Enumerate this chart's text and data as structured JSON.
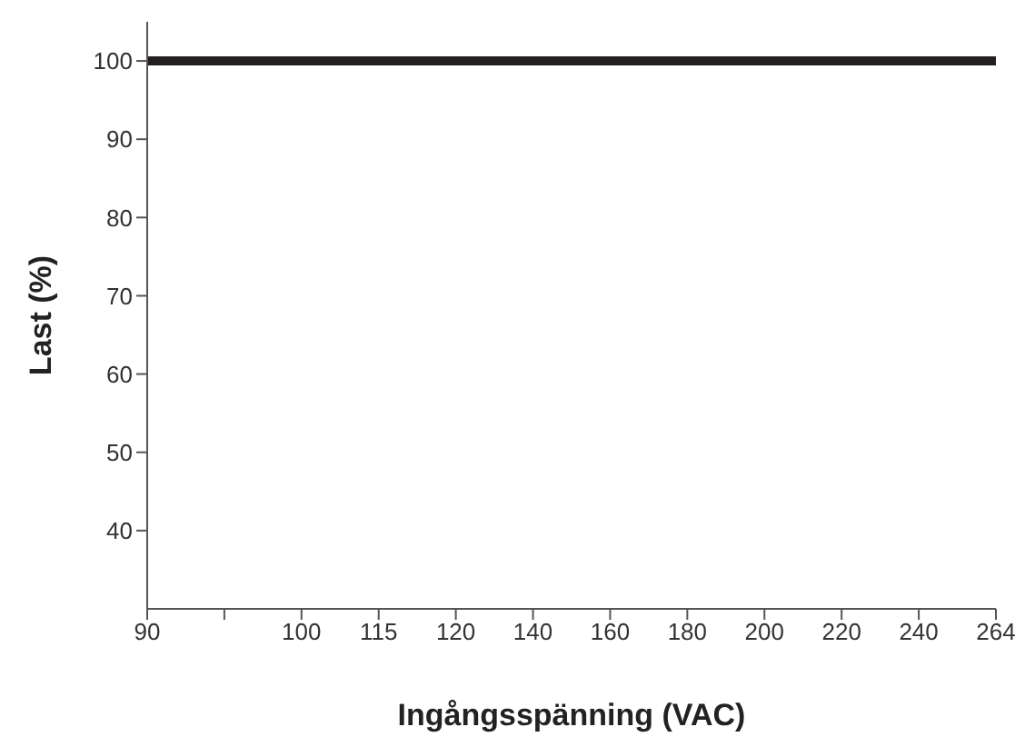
{
  "chart_data": {
    "type": "line",
    "xlabel": "Ingångsspänning (VAC)",
    "ylabel": "Last (%)",
    "categories": [
      "90",
      null,
      "100",
      "115",
      "120",
      "140",
      "160",
      "180",
      "200",
      "220",
      "240",
      "264"
    ],
    "values": [
      100,
      100,
      100,
      100,
      100,
      100,
      100,
      100,
      100,
      100,
      100,
      100
    ],
    "color": "#231f20",
    "marker": "none",
    "ylim": [
      30,
      105
    ],
    "yticks": [
      40,
      50,
      60,
      70,
      80,
      90,
      100
    ]
  }
}
